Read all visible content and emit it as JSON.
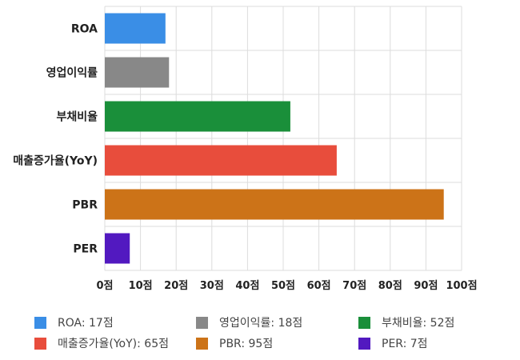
{
  "chart_data": {
    "type": "bar",
    "orientation": "horizontal",
    "categories": [
      "ROA",
      "영업이익률",
      "부채비율",
      "매출증가율(YoY)",
      "PBR",
      "PER"
    ],
    "values": [
      17,
      18,
      52,
      65,
      95,
      7
    ],
    "colors": [
      "#3a8ee6",
      "#888888",
      "#1a8f3a",
      "#e84d3c",
      "#cc7318",
      "#5219c0"
    ],
    "xlim": [
      0,
      100
    ],
    "x_ticks": [
      0,
      10,
      20,
      30,
      40,
      50,
      60,
      70,
      80,
      90,
      100
    ],
    "tick_suffix": "점",
    "grid": true,
    "legend_position": "bottom",
    "legend": [
      "ROA: 17점",
      "영업이익률: 18점",
      "부채비율: 52점",
      "매출증가율(YoY): 65점",
      "PBR: 95점",
      "PER: 7점"
    ]
  }
}
